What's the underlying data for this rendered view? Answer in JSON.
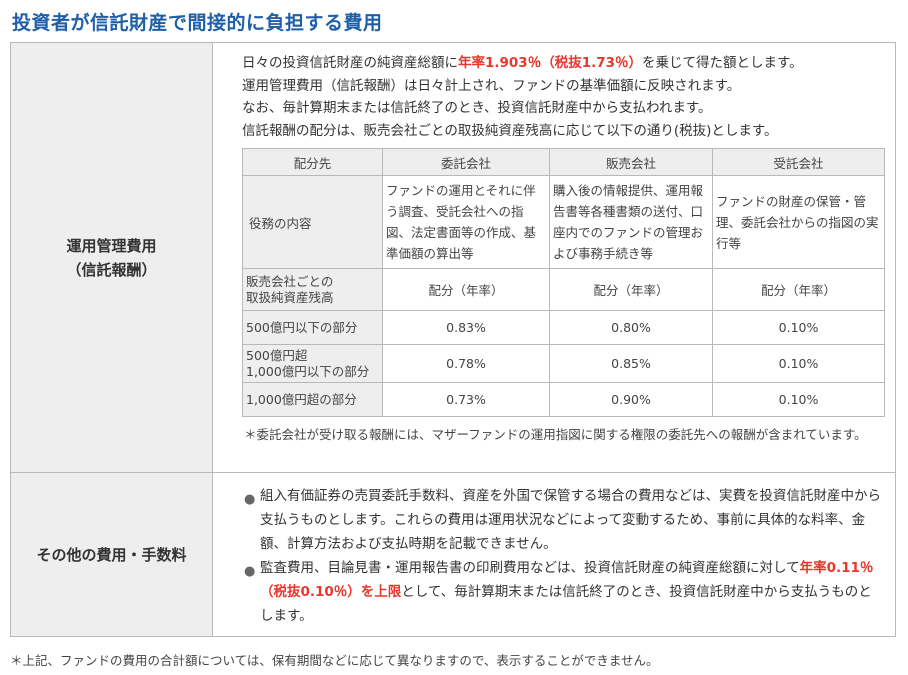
{
  "title": "投資者が信託財産で間接的に負担する費用",
  "management_fee": {
    "label_line1": "運用管理費用",
    "label_line2": "（信託報酬）",
    "desc": {
      "l1_pre": "日々の投資信託財産の純資産総額に",
      "l1_red": "年率1.903％（税抜1.73％）",
      "l1_post": "を乗じて得た額とします。",
      "l2": "運用管理費用（信託報酬）は日々計上され、ファンドの基準価額に反映されます。",
      "l3": "なお、毎計算期末または信託終了のとき、投資信託財産中から支払われます。",
      "l4": "信託報酬の配分は、販売会社ごとの取扱純資産残高に応じて以下の通り(税抜)とします。"
    },
    "table": {
      "headers": [
        "配分先",
        "委託会社",
        "販売会社",
        "受託会社"
      ],
      "duty_label": "役務の内容",
      "duties": [
        "ファンドの運用とそれに伴う調査、受託会社への指図、法定書面等の作成、基準価額の算出等",
        "購入後の情報提供、運用報告書等各種書類の送付、口座内でのファンドの管理および事務手続き等",
        "ファンドの財産の保管・管理、委託会社からの指図の実行等"
      ],
      "rate_label_line1": "販売会社ごとの",
      "rate_label_line2": "取扱純資産残高",
      "rate_header": "配分（年率）",
      "rows": [
        {
          "label1": "500億円以下の部分",
          "label2": "",
          "values": [
            "0.83%",
            "0.80%",
            "0.10%"
          ]
        },
        {
          "label1": "500億円超",
          "label2": "1,000億円以下の部分",
          "values": [
            "0.78%",
            "0.85%",
            "0.10%"
          ]
        },
        {
          "label1": "1,000億円超の部分",
          "label2": "",
          "values": [
            "0.73%",
            "0.90%",
            "0.10%"
          ]
        }
      ]
    },
    "note": "＊委託会社が受け取る報酬には、マザーファンドの運用指図に関する権限の委託先への報酬が含まれています。"
  },
  "other_fees": {
    "label": "その他の費用・手数料",
    "bullet_symbol": "●",
    "b1": "組入有価証券の売買委託手数料、資産を外国で保管する場合の費用などは、実費を投資信託財産中から支払うものとします。これらの費用は運用状況などによって変動するため、事前に具体的な料率、金額、計算方法および支払時期を記載できません。",
    "b2_pre": "監査費用、目論見書・運用報告書の印刷費用などは、投資信託財産の純資産総額に対して",
    "b2_red": "年率0.11％（税抜0.10％）を上限",
    "b2_post": "として、毎計算期末または信託終了のとき、投資信託財産中から支払うものとします。"
  },
  "footnote": "＊上記、ファンドの費用の合計額については、保有期間などに応じて異なりますので、表示することができません。",
  "colors": {
    "title": "#1f5fa8",
    "highlight": "#e8382b",
    "header_bg": "#eeeeee",
    "border": "#b8b8b8"
  }
}
